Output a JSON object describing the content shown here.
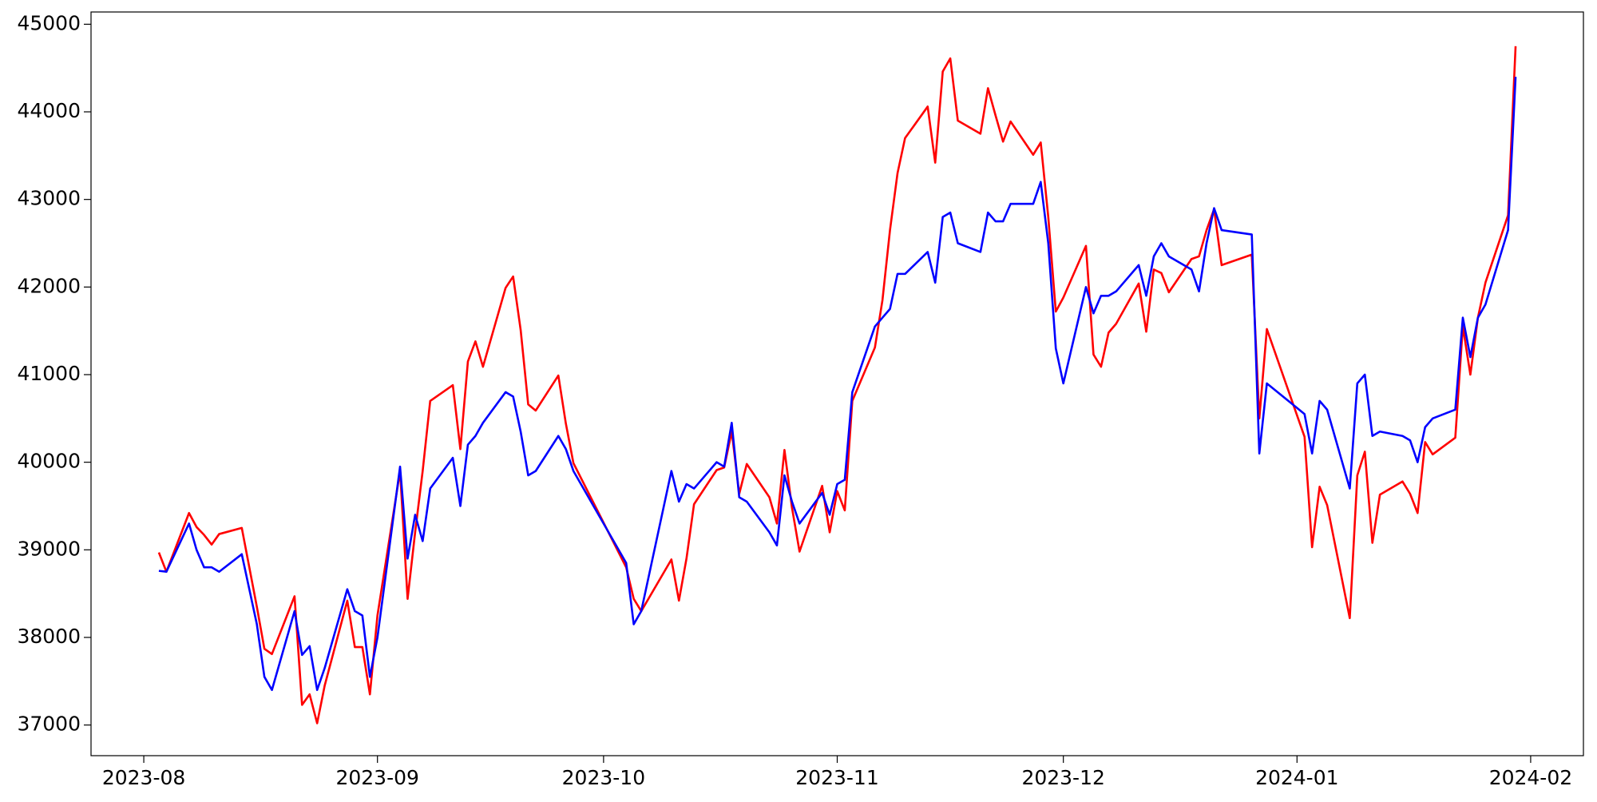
{
  "chart_data": {
    "type": "line",
    "x": [
      19572,
      19573,
      19576,
      19577,
      19578,
      19579,
      19580,
      19583,
      19585,
      19586,
      19587,
      19590,
      19591,
      19592,
      19593,
      19594,
      19597,
      19598,
      19599,
      19600,
      19601,
      19604,
      19605,
      19606,
      19607,
      19608,
      19611,
      19612,
      19613,
      19614,
      19615,
      19618,
      19619,
      19620,
      19621,
      19622,
      19625,
      19626,
      19627,
      19634,
      19635,
      19636,
      19640,
      19641,
      19642,
      19643,
      19646,
      19647,
      19648,
      19649,
      19650,
      19653,
      19654,
      19655,
      19656,
      19657,
      19660,
      19661,
      19662,
      19663,
      19664,
      19667,
      19668,
      19669,
      19670,
      19671,
      19674,
      19675,
      19676,
      19677,
      19678,
      19681,
      19682,
      19683,
      19684,
      19685,
      19688,
      19689,
      19690,
      19691,
      19692,
      19695,
      19696,
      19697,
      19698,
      19699,
      19702,
      19703,
      19704,
      19705,
      19706,
      19709,
      19710,
      19711,
      19712,
      19713,
      19717,
      19718,
      19719,
      19724,
      19725,
      19726,
      19727,
      19730,
      19731,
      19732,
      19733,
      19734,
      19737,
      19738,
      19739,
      19740,
      19741,
      19744,
      19745,
      19746,
      19747,
      19748,
      19751,
      19752
    ],
    "series": [
      {
        "color": "#ff0000",
        "values": [
          38970,
          38750,
          39420,
          39260,
          39170,
          39060,
          39180,
          39250,
          38350,
          37870,
          37810,
          38470,
          37230,
          37350,
          37020,
          37450,
          38420,
          37890,
          37890,
          37350,
          38250,
          39900,
          38440,
          39200,
          39900,
          40700,
          40880,
          40150,
          41150,
          41380,
          41090,
          41990,
          42120,
          41510,
          40660,
          40590,
          40990,
          40440,
          39990,
          38800,
          38440,
          38300,
          38890,
          38420,
          38900,
          39520,
          39910,
          39940,
          40350,
          39640,
          39980,
          39600,
          39300,
          40140,
          39480,
          38980,
          39730,
          39200,
          39670,
          39450,
          40700,
          41310,
          41850,
          42650,
          43300,
          43700,
          44060,
          43420,
          44460,
          44610,
          43900,
          43750,
          44270,
          43960,
          43660,
          43890,
          43510,
          43650,
          42800,
          41720,
          41880,
          42470,
          41230,
          41090,
          41480,
          41580,
          42040,
          41490,
          42200,
          42160,
          41940,
          42320,
          42350,
          42650,
          42890,
          42250,
          42370,
          40500,
          41520,
          40290,
          39030,
          39720,
          39510,
          38220,
          39850,
          40120,
          39080,
          39630,
          39780,
          39640,
          39420,
          40230,
          40090,
          40280,
          41550,
          41000,
          41650,
          42050,
          42820,
          44750
        ]
      },
      {
        "color": "#0000ff",
        "values": [
          38760,
          38750,
          39300,
          39000,
          38800,
          38800,
          38750,
          38950,
          38150,
          37550,
          37400,
          38300,
          37800,
          37900,
          37400,
          37650,
          38550,
          38300,
          38250,
          37550,
          38000,
          39950,
          38900,
          39400,
          39100,
          39700,
          40050,
          39500,
          40200,
          40300,
          40450,
          40800,
          40750,
          40350,
          39850,
          39900,
          40300,
          40150,
          39900,
          38850,
          38150,
          38300,
          39900,
          39550,
          39750,
          39700,
          40000,
          39950,
          40450,
          39600,
          39550,
          39200,
          39050,
          39850,
          39550,
          39300,
          39650,
          39400,
          39750,
          39800,
          40800,
          41550,
          41650,
          41750,
          42150,
          42150,
          42400,
          42050,
          42800,
          42850,
          42500,
          42400,
          42850,
          42750,
          42750,
          42950,
          42950,
          43200,
          42500,
          41300,
          40900,
          42000,
          41700,
          41900,
          41900,
          41950,
          42250,
          41900,
          42350,
          42500,
          42350,
          42200,
          41950,
          42500,
          42900,
          42650,
          42600,
          40100,
          40900,
          40550,
          40100,
          40700,
          40600,
          39700,
          40900,
          41000,
          40300,
          40350,
          40300,
          40250,
          40000,
          40400,
          40500,
          40600,
          41650,
          41200,
          41650,
          41800,
          42650,
          44400
        ]
      }
    ],
    "xlim": [
      19563,
      19761
    ],
    "xticks": [
      {
        "value": 19570,
        "label": "2023-08"
      },
      {
        "value": 19601,
        "label": "2023-09"
      },
      {
        "value": 19631,
        "label": "2023-10"
      },
      {
        "value": 19662,
        "label": "2023-11"
      },
      {
        "value": 19692,
        "label": "2023-12"
      },
      {
        "value": 19723,
        "label": "2024-01"
      },
      {
        "value": 19754,
        "label": "2024-02"
      }
    ],
    "ylim": [
      36650,
      45140
    ],
    "yticks": [
      37000,
      38000,
      39000,
      40000,
      41000,
      42000,
      43000,
      44000,
      45000
    ]
  }
}
